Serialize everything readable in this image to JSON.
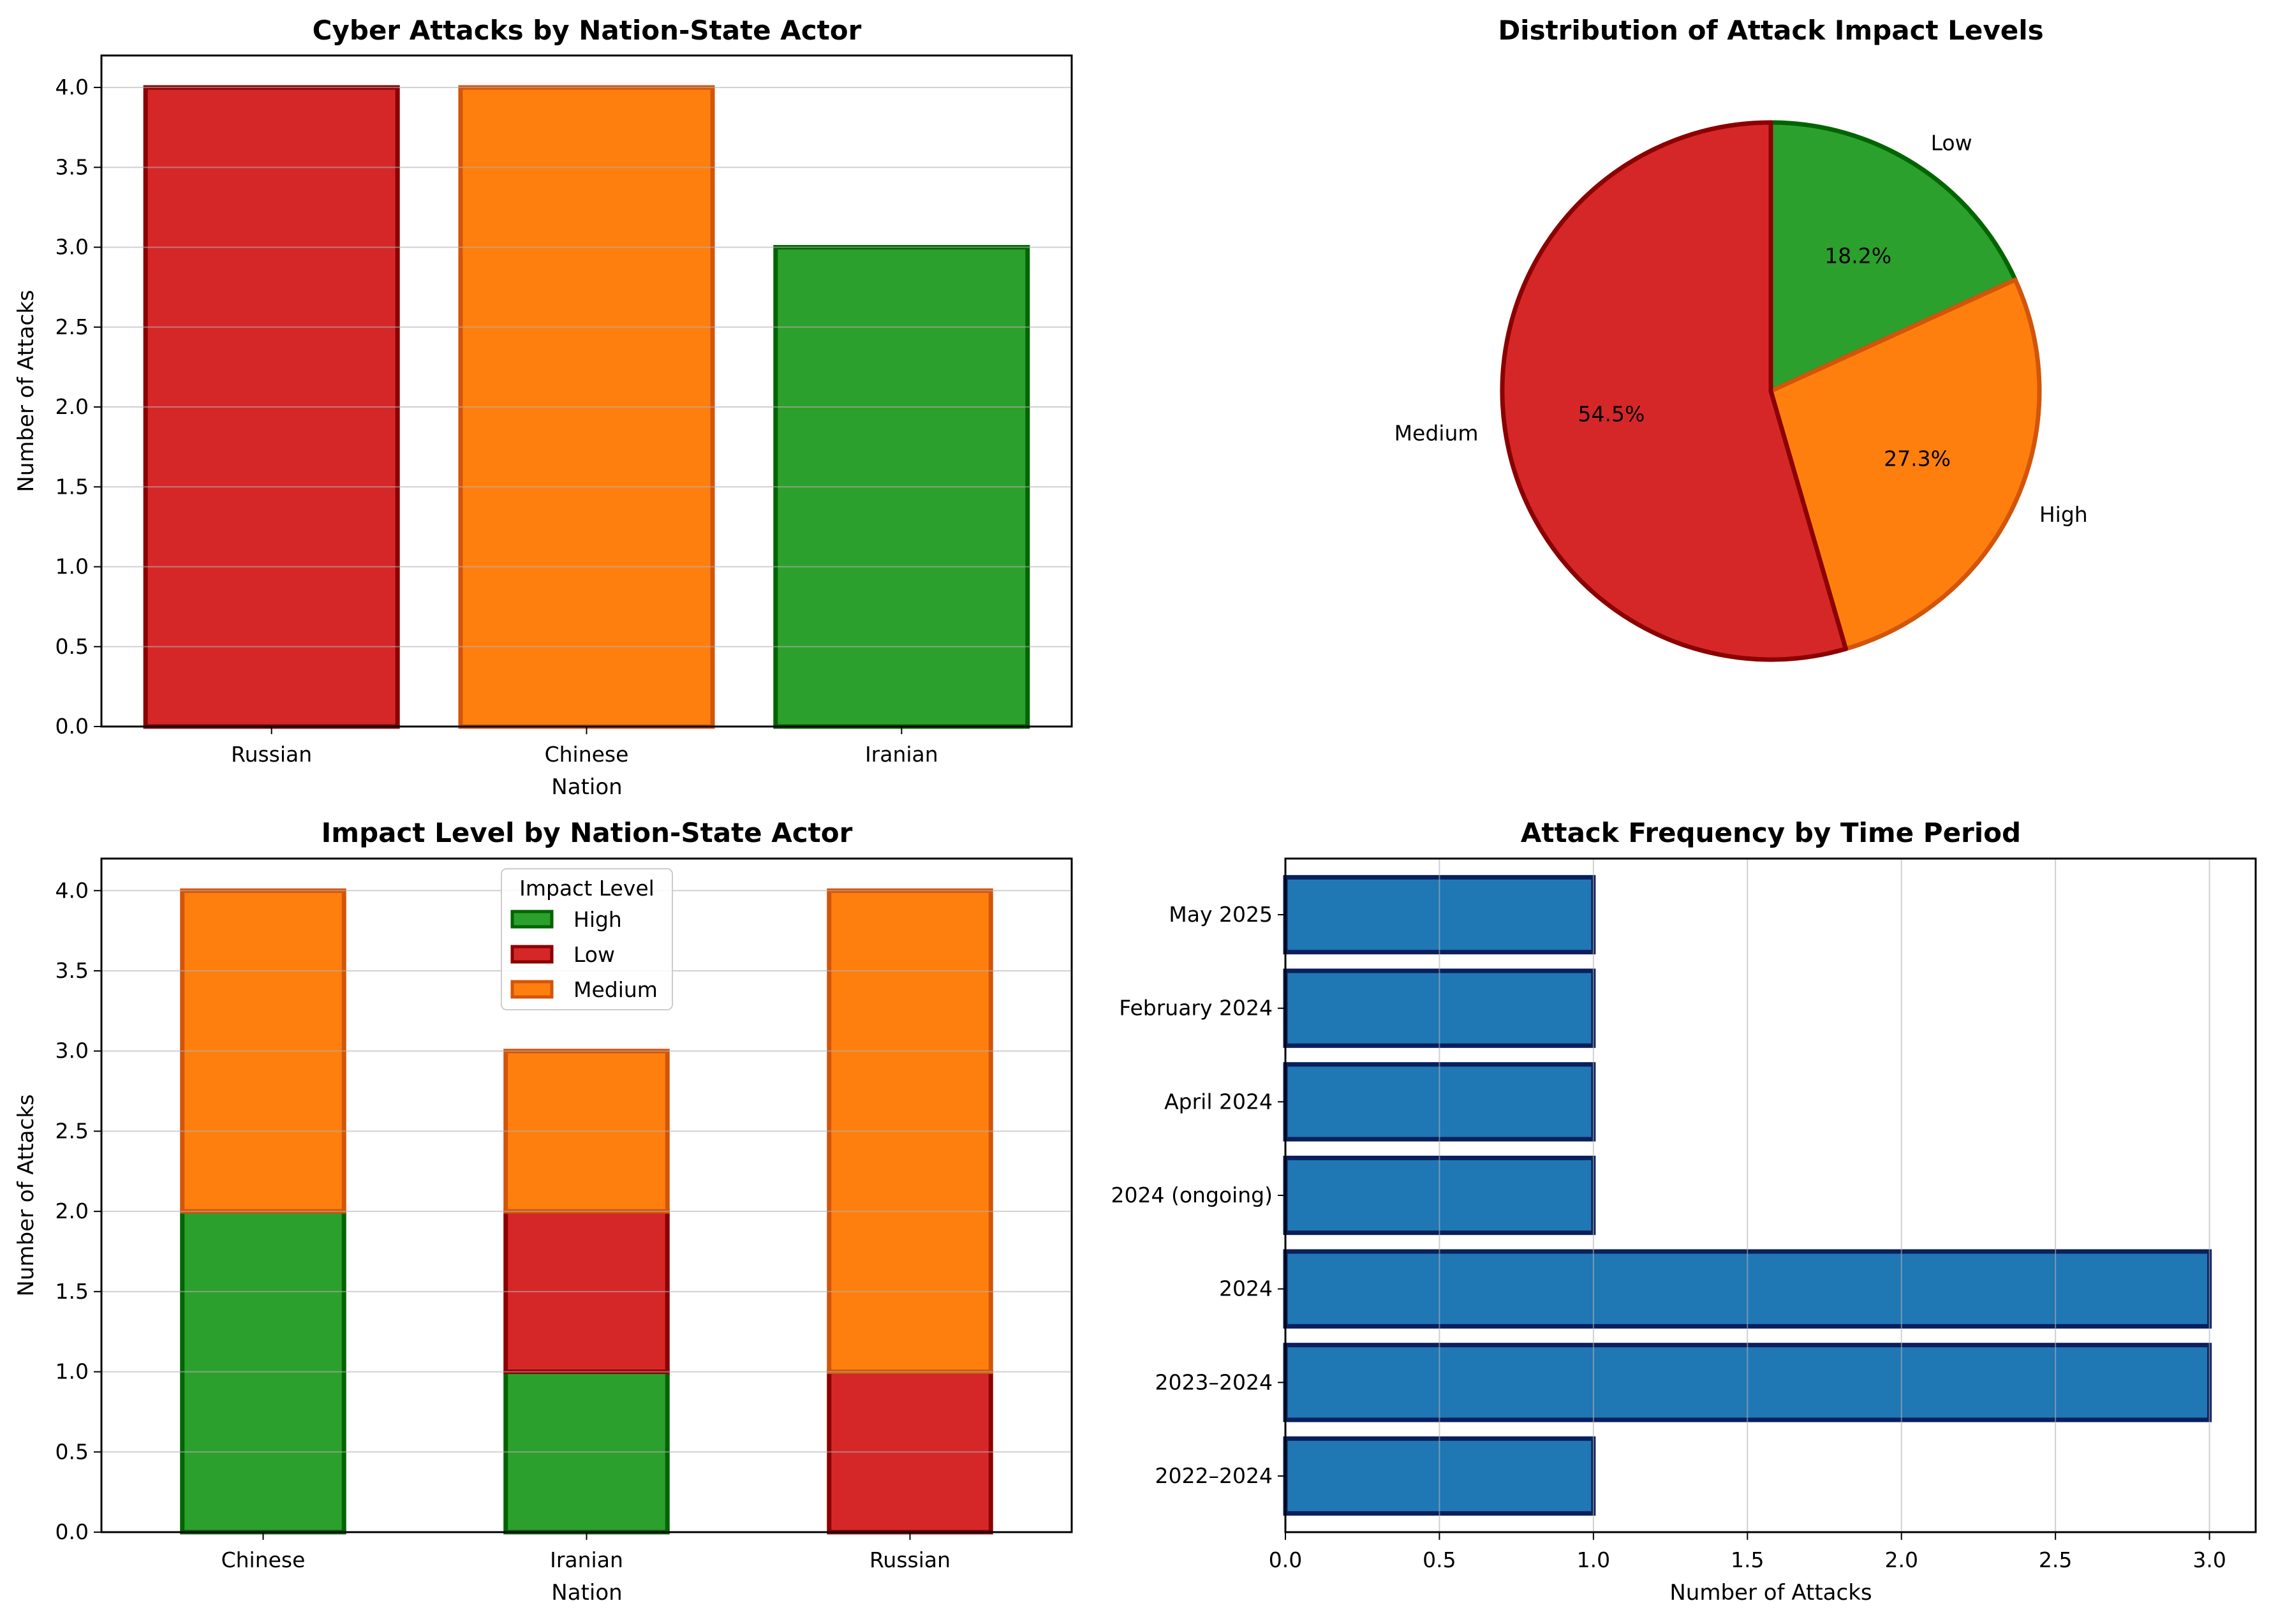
{
  "colors": {
    "red": "#d62728",
    "orange": "#ff7f0e",
    "green": "#2ca02c",
    "blue": "#1f77b4",
    "red_edge": "#8b0000",
    "orange_edge": "#d2550a",
    "green_edge": "#006400",
    "blue_edge": "#0a1f5c"
  },
  "chart_data": [
    {
      "type": "bar",
      "title": "Cyber Attacks by Nation-State Actor",
      "xlabel": "Nation",
      "ylabel": "Number of Attacks",
      "categories": [
        "Russian",
        "Chinese",
        "Iranian"
      ],
      "values": [
        4,
        4,
        3
      ],
      "bar_colors": [
        "red",
        "orange",
        "green"
      ],
      "ylim": [
        0,
        4.2
      ],
      "yticks": [
        0.0,
        0.5,
        1.0,
        1.5,
        2.0,
        2.5,
        3.0,
        3.5,
        4.0
      ],
      "grid": "y"
    },
    {
      "type": "pie",
      "title": "Distribution of Attack Impact Levels",
      "labels": [
        "Low",
        "High",
        "Medium"
      ],
      "values": [
        18.2,
        27.3,
        54.5
      ],
      "pct_labels": [
        "18.2%",
        "27.3%",
        "54.5%"
      ],
      "slice_colors": [
        "green",
        "orange",
        "red"
      ],
      "startangle": 90,
      "direction": "clockwise"
    },
    {
      "type": "bar",
      "stacked": true,
      "title": "Impact Level by Nation-State Actor",
      "xlabel": "Nation",
      "ylabel": "Number of Attacks",
      "categories": [
        "Chinese",
        "Iranian",
        "Russian"
      ],
      "series": [
        {
          "name": "High",
          "color": "green",
          "values": [
            2,
            1,
            0
          ]
        },
        {
          "name": "Low",
          "color": "red",
          "values": [
            0,
            1,
            1
          ]
        },
        {
          "name": "Medium",
          "color": "orange",
          "values": [
            2,
            1,
            3
          ]
        }
      ],
      "legend_title": "Impact Level",
      "legend_position": "top-center",
      "ylim": [
        0,
        4.2
      ],
      "yticks": [
        0.0,
        0.5,
        1.0,
        1.5,
        2.0,
        2.5,
        3.0,
        3.5,
        4.0
      ],
      "grid": "y"
    },
    {
      "type": "bar",
      "orientation": "horizontal",
      "title": "Attack Frequency by Time Period",
      "xlabel": "Number of Attacks",
      "ylabel": "",
      "categories": [
        "2022–2024",
        "2023–2024",
        "2024",
        "2024 (ongoing)",
        "April 2024",
        "February 2024",
        "May 2025"
      ],
      "values": [
        1,
        3,
        3,
        1,
        1,
        1,
        1
      ],
      "xlim": [
        0,
        3.15
      ],
      "xticks": [
        0.0,
        0.5,
        1.0,
        1.5,
        2.0,
        2.5,
        3.0
      ],
      "grid": "x"
    }
  ]
}
